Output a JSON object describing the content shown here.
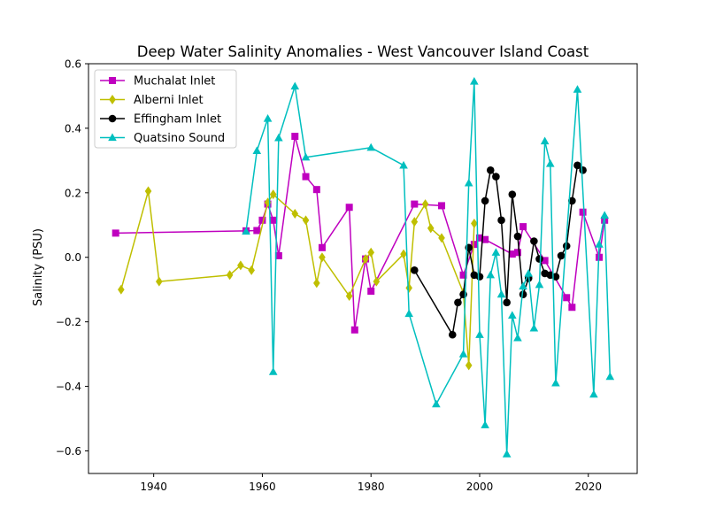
{
  "chart_data": {
    "type": "line",
    "title": "Deep Water Salinity Anomalies - West Vancouver Island Coast",
    "xlabel": "",
    "ylabel": "Salinity (PSU)",
    "xlim": [
      1928,
      2029
    ],
    "ylim": [
      -0.67,
      0.6
    ],
    "x_ticks": [
      1940,
      1960,
      1980,
      2000,
      2020
    ],
    "y_ticks": [
      -0.6,
      -0.4,
      -0.2,
      0.0,
      0.2,
      0.4,
      0.6
    ],
    "x_tick_labels": [
      "1940",
      "1960",
      "1980",
      "2000",
      "2020"
    ],
    "y_tick_labels": [
      "−0.6",
      "−0.4",
      "−0.2",
      "0.0",
      "0.2",
      "0.4",
      "0.6"
    ],
    "grid": false,
    "legend_position": "upper-left",
    "series": [
      {
        "name": "Muchalat Inlet",
        "color": "#bf00bf",
        "marker": "square",
        "points": [
          [
            1933,
            0.075
          ],
          [
            1957,
            0.082
          ],
          [
            1959,
            0.083
          ],
          [
            1960,
            0.115
          ],
          [
            1961,
            0.165
          ],
          [
            1962,
            0.115
          ],
          [
            1963,
            0.005
          ],
          [
            1966,
            0.375
          ],
          [
            1968,
            0.25
          ],
          [
            1970,
            0.21
          ],
          [
            1971,
            0.03
          ],
          [
            1976,
            0.155
          ],
          [
            1977,
            -0.225
          ],
          [
            1979,
            -0.005
          ],
          [
            1980,
            -0.105
          ],
          [
            1988,
            0.165
          ],
          [
            1993,
            0.16
          ],
          [
            1997,
            -0.055
          ],
          [
            1999,
            0.04
          ],
          [
            2000,
            0.06
          ],
          [
            2001,
            0.055
          ],
          [
            2006,
            0.01
          ],
          [
            2007,
            0.015
          ],
          [
            2008,
            0.095
          ],
          [
            2012,
            -0.01
          ],
          [
            2016,
            -0.125
          ],
          [
            2017,
            -0.155
          ],
          [
            2019,
            0.14
          ],
          [
            2022,
            0.0
          ],
          [
            2023,
            0.115
          ]
        ]
      },
      {
        "name": "Alberni Inlet",
        "color": "#bfbf00",
        "marker": "diamond",
        "points": [
          [
            1934,
            -0.1
          ],
          [
            1939,
            0.205
          ],
          [
            1941,
            -0.075
          ],
          [
            1954,
            -0.055
          ],
          [
            1956,
            -0.025
          ],
          [
            1958,
            -0.04
          ],
          [
            1961,
            0.17
          ],
          [
            1962,
            0.195
          ],
          [
            1966,
            0.135
          ],
          [
            1968,
            0.115
          ],
          [
            1970,
            -0.08
          ],
          [
            1971,
            0.0
          ],
          [
            1976,
            -0.12
          ],
          [
            1979,
            -0.005
          ],
          [
            1980,
            0.015
          ],
          [
            1981,
            -0.075
          ],
          [
            1986,
            0.01
          ],
          [
            1987,
            -0.095
          ],
          [
            1988,
            0.11
          ],
          [
            1990,
            0.165
          ],
          [
            1991,
            0.09
          ],
          [
            1993,
            0.06
          ],
          [
            1997,
            -0.11
          ],
          [
            1998,
            -0.335
          ],
          [
            1999,
            0.105
          ]
        ]
      },
      {
        "name": "Effingham Inlet",
        "color": "#000000",
        "marker": "circle",
        "points": [
          [
            1988,
            -0.04
          ],
          [
            1995,
            -0.24
          ],
          [
            1996,
            -0.14
          ],
          [
            1997,
            -0.115
          ],
          [
            1998,
            0.03
          ],
          [
            1999,
            -0.055
          ],
          [
            2000,
            -0.06
          ],
          [
            2001,
            0.175
          ],
          [
            2002,
            0.27
          ],
          [
            2003,
            0.25
          ],
          [
            2004,
            0.115
          ],
          [
            2005,
            -0.14
          ],
          [
            2006,
            0.195
          ],
          [
            2007,
            0.065
          ],
          [
            2008,
            -0.115
          ],
          [
            2009,
            -0.065
          ],
          [
            2010,
            0.05
          ],
          [
            2011,
            -0.005
          ],
          [
            2012,
            -0.05
          ],
          [
            2013,
            -0.055
          ],
          [
            2014,
            -0.06
          ],
          [
            2015,
            0.005
          ],
          [
            2016,
            0.035
          ],
          [
            2017,
            0.175
          ],
          [
            2018,
            0.285
          ],
          [
            2019,
            0.27
          ]
        ]
      },
      {
        "name": "Quatsino Sound",
        "color": "#00bfbf",
        "marker": "triangle-up",
        "points": [
          [
            1957,
            0.08
          ],
          [
            1959,
            0.33
          ],
          [
            1961,
            0.43
          ],
          [
            1962,
            -0.355
          ],
          [
            1963,
            0.37
          ],
          [
            1966,
            0.53
          ],
          [
            1968,
            0.31
          ],
          [
            1980,
            0.34
          ],
          [
            1986,
            0.285
          ],
          [
            1987,
            -0.175
          ],
          [
            1992,
            -0.455
          ],
          [
            1997,
            -0.3
          ],
          [
            1998,
            0.23
          ],
          [
            1999,
            0.545
          ],
          [
            2000,
            -0.24
          ],
          [
            2001,
            -0.52
          ],
          [
            2002,
            -0.055
          ],
          [
            2003,
            0.015
          ],
          [
            2004,
            -0.115
          ],
          [
            2005,
            -0.61
          ],
          [
            2006,
            -0.18
          ],
          [
            2007,
            -0.25
          ],
          [
            2008,
            -0.09
          ],
          [
            2009,
            -0.05
          ],
          [
            2010,
            -0.22
          ],
          [
            2011,
            -0.085
          ],
          [
            2012,
            0.36
          ],
          [
            2013,
            0.29
          ],
          [
            2014,
            -0.39
          ],
          [
            2018,
            0.52
          ],
          [
            2021,
            -0.425
          ],
          [
            2022,
            0.04
          ],
          [
            2023,
            0.13
          ],
          [
            2024,
            -0.37
          ]
        ]
      }
    ]
  }
}
